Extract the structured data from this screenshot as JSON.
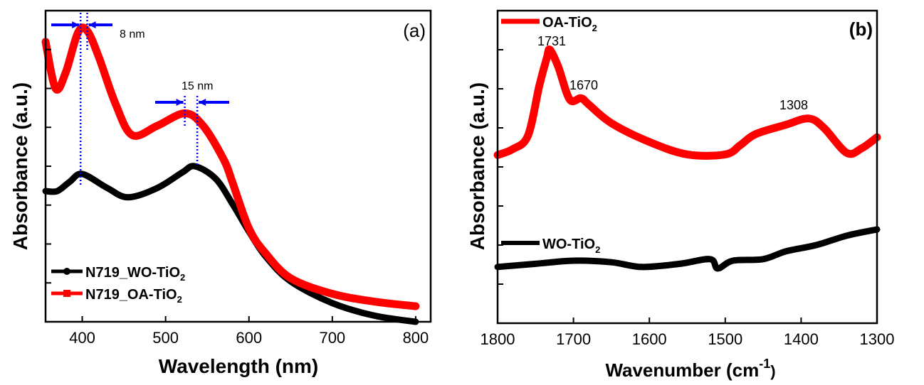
{
  "chart_data": [
    {
      "type": "line",
      "panel_label": "(a)",
      "xlabel": "Wavelength (nm)",
      "ylabel": "Absorbance (a.u.)",
      "xlim": [
        356,
        818
      ],
      "ylim": [
        0,
        1
      ],
      "xticks": [
        400,
        500,
        600,
        700,
        800
      ],
      "grid": false,
      "legend_position": "bottom-left",
      "annotations": [
        {
          "text": "8 nm",
          "from": 398,
          "to": 406
        },
        {
          "text": "15 nm",
          "from": 523,
          "to": 538
        }
      ],
      "series": [
        {
          "name": "N719_WO-TiO",
          "name_sub": "2",
          "color": "#000000",
          "x": [
            356,
            370,
            385,
            400,
            430,
            455,
            490,
            520,
            535,
            560,
            580,
            600,
            620,
            650,
            700,
            750,
            800
          ],
          "y": [
            0.42,
            0.42,
            0.45,
            0.475,
            0.43,
            0.4,
            0.43,
            0.48,
            0.5,
            0.46,
            0.38,
            0.29,
            0.21,
            0.13,
            0.06,
            0.02,
            0.0
          ]
        },
        {
          "name": "N719_OA-TiO",
          "name_sub": "2",
          "color": "#ff0000",
          "x": [
            356,
            368,
            380,
            395,
            406,
            420,
            440,
            460,
            490,
            523,
            545,
            570,
            580,
            600,
            620,
            650,
            700,
            750,
            800
          ],
          "y": [
            0.9,
            0.75,
            0.8,
            0.93,
            0.935,
            0.85,
            0.7,
            0.6,
            0.63,
            0.67,
            0.63,
            0.52,
            0.45,
            0.3,
            0.22,
            0.14,
            0.09,
            0.065,
            0.05
          ]
        }
      ]
    },
    {
      "type": "line",
      "panel_label": "(b)",
      "xlabel": "Wavenumber (cm",
      "xlabel_sup": "-1",
      "xlabel_end": ")",
      "ylabel": "Absorbance (a.u.)",
      "xlim": [
        1800,
        1300
      ],
      "ylim": [
        0,
        1
      ],
      "xticks": [
        1800,
        1700,
        1600,
        1500,
        1400,
        1300
      ],
      "grid": false,
      "annotations": [
        "1731",
        "1670",
        "1308"
      ],
      "series": [
        {
          "name": "OA-TiO",
          "name_sub": "2",
          "color": "#ff0000",
          "x": [
            1800,
            1780,
            1760,
            1745,
            1735,
            1731,
            1720,
            1705,
            1690,
            1680,
            1650,
            1600,
            1550,
            1500,
            1480,
            1460,
            1420,
            1390,
            1370,
            1340,
            1320,
            1300
          ],
          "y": [
            0.538,
            0.557,
            0.6,
            0.76,
            0.85,
            0.875,
            0.82,
            0.716,
            0.72,
            0.7,
            0.64,
            0.58,
            0.54,
            0.54,
            0.57,
            0.605,
            0.635,
            0.655,
            0.625,
            0.545,
            0.56,
            0.595
          ]
        },
        {
          "name": "WO-TiO",
          "name_sub": "2",
          "color": "#000000",
          "x": [
            1800,
            1750,
            1700,
            1650,
            1610,
            1560,
            1520,
            1510,
            1490,
            1450,
            1420,
            1380,
            1340,
            1300
          ],
          "y": [
            0.18,
            0.19,
            0.2,
            0.195,
            0.18,
            0.19,
            0.205,
            0.175,
            0.2,
            0.205,
            0.23,
            0.25,
            0.28,
            0.3
          ]
        }
      ]
    }
  ]
}
